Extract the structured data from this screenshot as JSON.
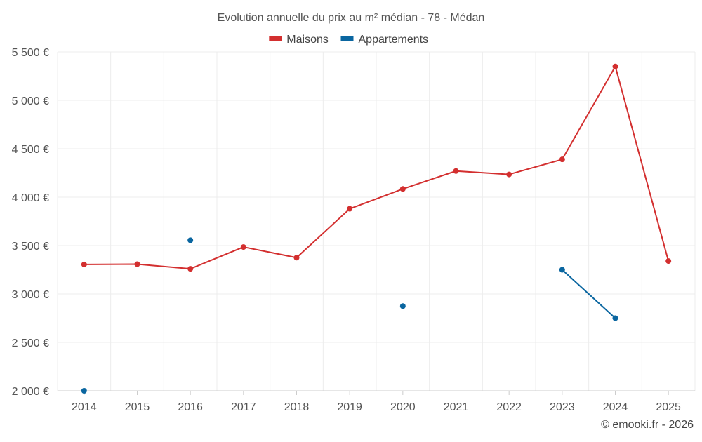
{
  "chart_data": {
    "type": "line",
    "title": "Evolution annuelle du prix au m² médian - 78 - Médan",
    "xlabel": "",
    "ylabel": "",
    "categories": [
      "2014",
      "2015",
      "2016",
      "2017",
      "2018",
      "2019",
      "2020",
      "2021",
      "2022",
      "2023",
      "2024",
      "2025"
    ],
    "ylim": [
      2000,
      5500
    ],
    "yticks": [
      2000,
      2500,
      3000,
      3500,
      4000,
      4500,
      5000,
      5500
    ],
    "ytick_labels": [
      "2 000 €",
      "2 500 €",
      "3 000 €",
      "3 500 €",
      "4 000 €",
      "4 500 €",
      "5 000 €",
      "5 500 €"
    ],
    "grid": true,
    "legend_position": "top-center",
    "series": [
      {
        "name": "Maisons",
        "color": "#d32f2f",
        "values": [
          3305,
          3308,
          3260,
          3485,
          3375,
          3880,
          4085,
          4270,
          4235,
          4390,
          5350,
          3340
        ]
      },
      {
        "name": "Appartements",
        "color": "#0a66a0",
        "values": [
          2000,
          null,
          3555,
          null,
          null,
          null,
          2875,
          null,
          null,
          3250,
          2750,
          null
        ]
      }
    ]
  },
  "credit": "© emooki.fr - 2026"
}
